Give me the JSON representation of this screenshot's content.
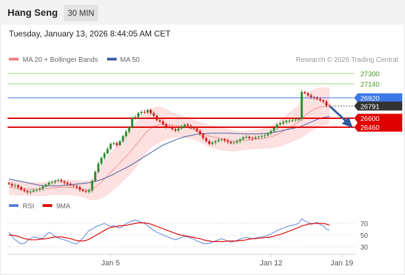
{
  "header": {
    "instrument": "Hang Seng",
    "timeframe": "30 MIN",
    "datetime": "Tuesday, January 13, 2026 8:44:05 AM CET",
    "copyright": "Research © 2026 Trading Central"
  },
  "colors": {
    "bollinger_fill": "#fde0e0",
    "ma20": "#f08080",
    "ma50": "#3d5f9f",
    "candle_up": "#2e8b2e",
    "candle_down": "#cc1f1f",
    "resistance": "#9bd07a",
    "pivot": "#3b78e7",
    "support": "#e10000",
    "last_price": "#333333",
    "rsi": "#5b7fd6",
    "rsi_ma": "#e10000"
  },
  "chart_data": [
    {
      "type": "candlestick",
      "legend": [
        {
          "label": "MA 20 + Bollinger Bands",
          "color": "#f08080"
        },
        {
          "label": "MA 50",
          "color": "#3d5f9f"
        }
      ],
      "x_ticks": [
        "Jan 5",
        "Jan 12",
        "Jan 19"
      ],
      "ylim": [
        25100,
        27600
      ],
      "levels": [
        {
          "label": "27300",
          "value": 27300,
          "kind": "resistance"
        },
        {
          "label": "27140",
          "value": 27140,
          "kind": "resistance"
        },
        {
          "label": "26920",
          "value": 26920,
          "kind": "pivot"
        },
        {
          "label": "26791",
          "value": 26791,
          "kind": "last"
        },
        {
          "label": "26600",
          "value": 26600,
          "kind": "support"
        },
        {
          "label": "26460",
          "value": 26460,
          "kind": "support"
        }
      ],
      "close": [
        25570,
        25545,
        25550,
        25520,
        25480,
        25460,
        25440,
        25450,
        25470,
        25480,
        25500,
        25530,
        25560,
        25590,
        25600,
        25620,
        25630,
        25610,
        25590,
        25570,
        25550,
        25540,
        25520,
        25480,
        25460,
        25450,
        25470,
        25620,
        25760,
        25890,
        25980,
        26050,
        26120,
        26200,
        26210,
        26180,
        26240,
        26320,
        26390,
        26460,
        26600,
        26620,
        26680,
        26700,
        26690,
        26730,
        26680,
        26640,
        26570,
        26550,
        26510,
        26470,
        26460,
        26430,
        26410,
        26440,
        26470,
        26500,
        26480,
        26460,
        26440,
        26400,
        26350,
        26290,
        26240,
        26200,
        26220,
        26240,
        26260,
        26270,
        26250,
        26230,
        26210,
        26220,
        26240,
        26270,
        26300,
        26310,
        26290,
        26280,
        26300,
        26310,
        26320,
        26330,
        26360,
        26400,
        26450,
        26500,
        26520,
        26540,
        26560,
        26560,
        26570,
        26580,
        26590,
        27010,
        26990,
        26960,
        26930,
        26920,
        26900,
        26880,
        26860,
        26800,
        26791
      ],
      "ma20": [
        25520,
        25515,
        25510,
        25505,
        25500,
        25495,
        25490,
        25490,
        25490,
        25490,
        25490,
        25490,
        25495,
        25500,
        25505,
        25510,
        25515,
        25520,
        25520,
        25520,
        25515,
        25510,
        25505,
        25500,
        25490,
        25480,
        25470,
        25490,
        25520,
        25560,
        25600,
        25650,
        25700,
        25750,
        25800,
        25850,
        25900,
        25950,
        26000,
        26050,
        26110,
        26170,
        26230,
        26290,
        26350,
        26400,
        26440,
        26470,
        26490,
        26500,
        26505,
        26505,
        26500,
        26495,
        26490,
        26480,
        26470,
        26460,
        26450,
        26440,
        26420,
        26400,
        26380,
        26360,
        26340,
        26320,
        26310,
        26300,
        26290,
        26280,
        26270,
        26260,
        26250,
        26245,
        26245,
        26245,
        26250,
        26255,
        26260,
        26265,
        26270,
        26275,
        26280,
        26290,
        26300,
        26310,
        26325,
        26345,
        26370,
        26395,
        26425,
        26450,
        26480,
        26510,
        26540,
        26600,
        26640,
        26680,
        26710,
        26740,
        26760,
        26775,
        26785,
        26790,
        26795
      ],
      "ma50": [
        25650,
        25640,
        25630,
        25620,
        25610,
        25600,
        25590,
        25580,
        25570,
        25560,
        25550,
        25545,
        25540,
        25540,
        25540,
        25540,
        25540,
        25545,
        25550,
        25555,
        25560,
        25565,
        25570,
        25575,
        25580,
        25585,
        25590,
        25600,
        25610,
        25625,
        25640,
        25660,
        25680,
        25700,
        25725,
        25750,
        25775,
        25800,
        25825,
        25850,
        25880,
        25910,
        25940,
        25970,
        26000,
        26030,
        26060,
        26090,
        26120,
        26150,
        26180,
        26200,
        26220,
        26240,
        26260,
        26280,
        26295,
        26310,
        26320,
        26330,
        26340,
        26350,
        26355,
        26360,
        26362,
        26364,
        26365,
        26365,
        26365,
        26365,
        26365,
        26365,
        26364,
        26362,
        26360,
        26358,
        26357,
        26356,
        26355,
        26355,
        26355,
        26356,
        26358,
        26360,
        26365,
        26370,
        26380,
        26390,
        26400,
        26410,
        26420,
        26430,
        26440,
        26450,
        26460,
        26480,
        26500,
        26520,
        26540,
        26560,
        26580,
        26600,
        26610,
        26620,
        26630
      ],
      "bb_width": [
        120,
        120,
        120,
        115,
        110,
        110,
        110,
        110,
        110,
        110,
        110,
        110,
        110,
        110,
        110,
        115,
        120,
        120,
        120,
        120,
        120,
        120,
        120,
        125,
        130,
        140,
        150,
        170,
        200,
        230,
        260,
        280,
        300,
        310,
        320,
        330,
        335,
        340,
        345,
        350,
        355,
        355,
        350,
        345,
        335,
        320,
        310,
        300,
        290,
        280,
        260,
        240,
        220,
        200,
        190,
        180,
        175,
        170,
        165,
        160,
        160,
        160,
        160,
        165,
        170,
        175,
        180,
        180,
        180,
        180,
        180,
        175,
        170,
        165,
        160,
        155,
        150,
        150,
        150,
        150,
        150,
        155,
        160,
        165,
        170,
        180,
        190,
        200,
        210,
        220,
        230,
        240,
        250,
        260,
        270,
        300,
        310,
        315,
        320,
        320,
        315,
        310,
        300,
        290,
        280
      ]
    },
    {
      "type": "line",
      "legend": [
        {
          "label": "RSI",
          "color": "#5b7fd6"
        },
        {
          "label": "9MA",
          "color": "#e10000"
        }
      ],
      "ylim": [
        20,
        80
      ],
      "y_ticks": [
        "70",
        "50",
        "30"
      ],
      "rsi": [
        55,
        48,
        42,
        38,
        35,
        36,
        40,
        44,
        47,
        46,
        44,
        45,
        50,
        55,
        52,
        48,
        45,
        43,
        42,
        40,
        38,
        36,
        35,
        40,
        45,
        52,
        58,
        60,
        64,
        66,
        68,
        70,
        67,
        65,
        66,
        64,
        62,
        66,
        70,
        72,
        74,
        76,
        74,
        72,
        70,
        66,
        62,
        58,
        55,
        53,
        50,
        48,
        46,
        44,
        42,
        44,
        46,
        48,
        47,
        45,
        43,
        40,
        38,
        36,
        35,
        36,
        38,
        40,
        42,
        44,
        42,
        40,
        38,
        39,
        41,
        43,
        45,
        46,
        45,
        44,
        45,
        46,
        47,
        48,
        50,
        52,
        55,
        58,
        60,
        62,
        64,
        66,
        67,
        68,
        70,
        78,
        74,
        72,
        70,
        70,
        72,
        68,
        66,
        60,
        58
      ],
      "ma9": [
        50,
        50,
        49,
        48,
        46,
        44,
        43,
        42,
        42,
        42,
        43,
        43,
        44,
        45,
        46,
        47,
        47,
        47,
        46,
        45,
        44,
        42,
        41,
        40,
        40,
        41,
        43,
        46,
        49,
        52,
        55,
        58,
        61,
        63,
        64,
        65,
        66,
        66,
        67,
        68,
        69,
        70,
        71,
        71,
        71,
        70,
        69,
        67,
        65,
        63,
        61,
        59,
        57,
        55,
        53,
        51,
        50,
        49,
        48,
        47,
        46,
        45,
        44,
        42,
        41,
        40,
        39,
        39,
        39,
        39,
        39,
        40,
        40,
        40,
        40,
        41,
        41,
        42,
        43,
        44,
        44,
        45,
        45,
        46,
        46,
        47,
        48,
        50,
        51,
        53,
        55,
        57,
        59,
        61,
        63,
        66,
        67,
        69,
        69,
        70,
        70,
        70,
        70,
        69,
        67
      ]
    }
  ]
}
